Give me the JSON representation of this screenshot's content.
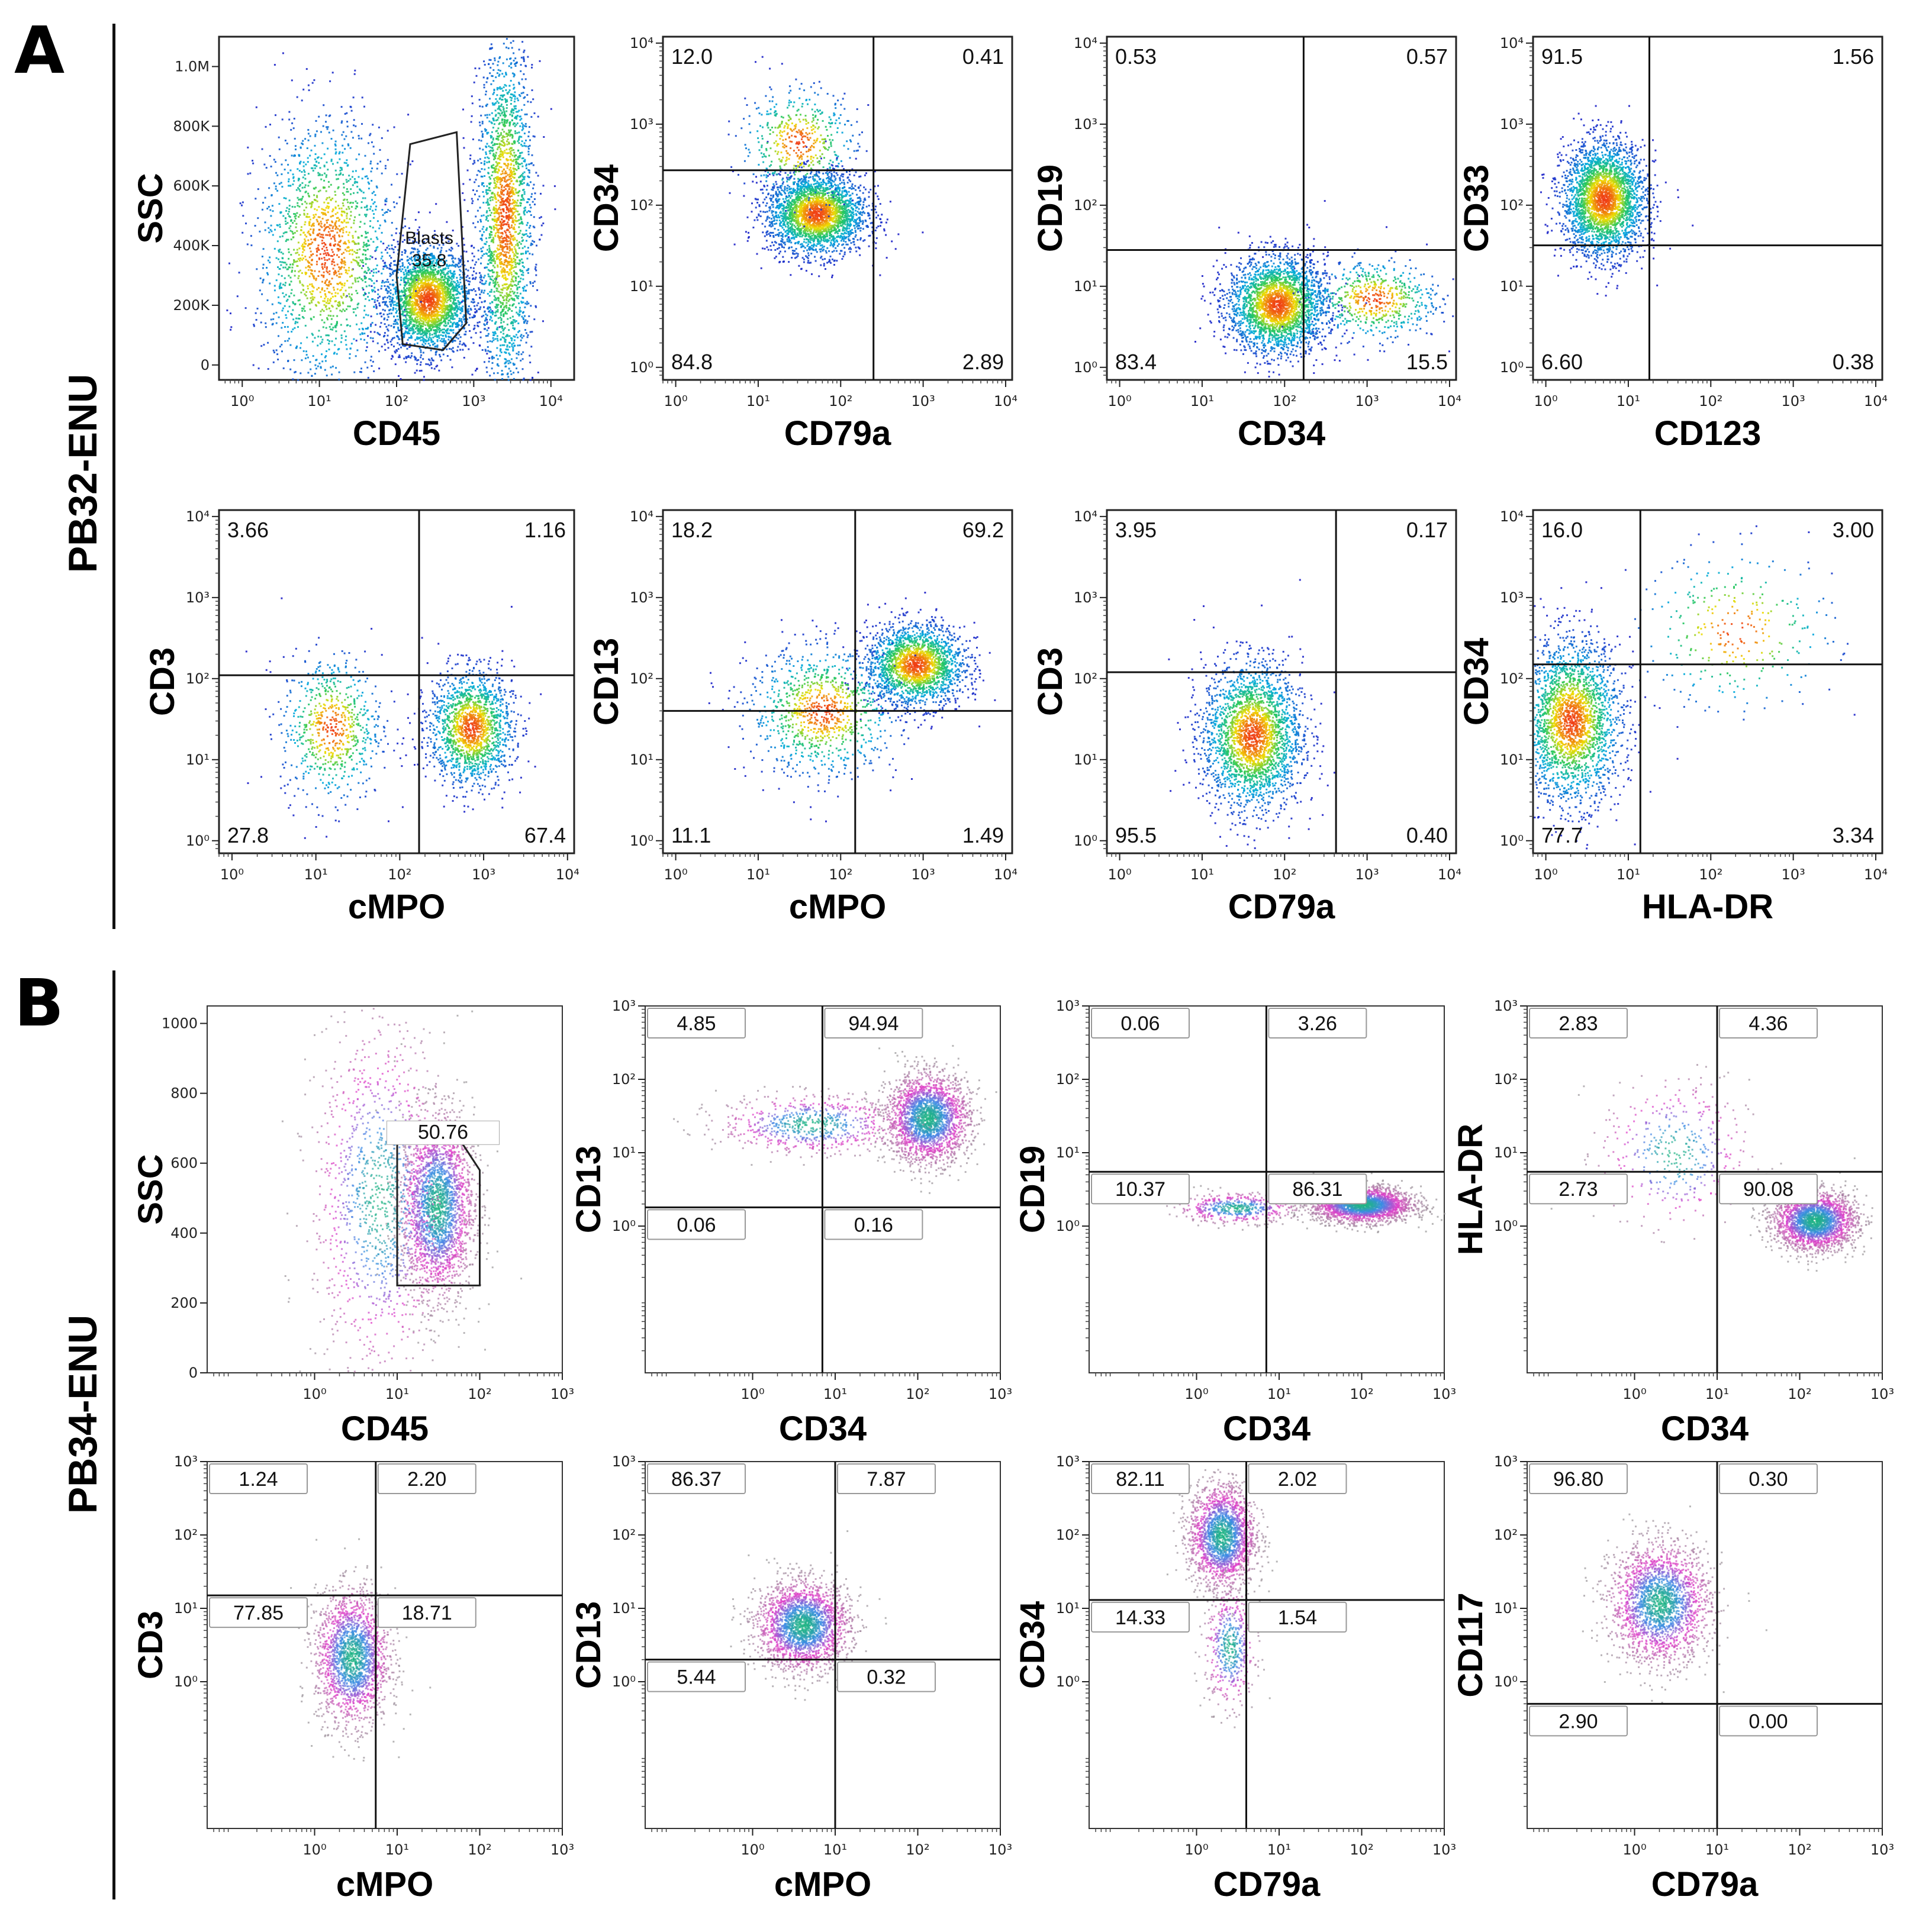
{
  "figure": {
    "panel_a": {
      "letter": "A",
      "sample": "PB32-ENU"
    },
    "panel_b": {
      "letter": "B",
      "sample": "PB34-ENU"
    }
  },
  "chart_data": [
    {
      "id": "a1",
      "type": "scatter",
      "xlabel": "CD45",
      "ylabel": "SSC",
      "x_scale": "log",
      "xlim": [
        0.5,
        20000
      ],
      "x_ticks": [
        1,
        10,
        100,
        1000,
        10000
      ],
      "x_tick_labels": [
        "10⁰",
        "10¹",
        "10²",
        "10³",
        "10⁴"
      ],
      "ylim": [
        -50000,
        1100000
      ],
      "y_ticks": [
        0,
        200000,
        400000,
        600000,
        800000,
        1000000
      ],
      "y_tick_labels": [
        "0",
        "200K",
        "400K",
        "600K",
        "800K",
        "1.0M"
      ],
      "gate": {
        "label": "Blasts",
        "value": "35.8",
        "points": [
          [
            100,
            300000
          ],
          [
            150,
            740000
          ],
          [
            600,
            780000
          ],
          [
            800,
            140000
          ],
          [
            400,
            50000
          ],
          [
            120,
            70000
          ]
        ]
      },
      "clusters": [
        {
          "cx": 250,
          "cy": 220000,
          "sx": 0.28,
          "sy": 90000,
          "n": 2600
        },
        {
          "cx": 12,
          "cy": 380000,
          "sx": 0.45,
          "sy": 220000,
          "n": 1700
        },
        {
          "cx": 2500,
          "cy": 500000,
          "sx": 0.18,
          "sy": 300000,
          "n": 2200
        }
      ],
      "style": "heat"
    },
    {
      "id": "a2",
      "type": "scatter",
      "xlabel": "CD79a",
      "ylabel": "CD34",
      "x_scale": "log",
      "y_scale": "log",
      "xlim": [
        0.7,
        12000
      ],
      "ylim": [
        0.7,
        12000
      ],
      "x_ticks": [
        1,
        10,
        100,
        1000,
        10000
      ],
      "x_tick_labels": [
        "10⁰",
        "10¹",
        "10²",
        "10³",
        "10⁴"
      ],
      "y_ticks": [
        1,
        10,
        100,
        1000,
        10000
      ],
      "y_tick_labels": [
        "10⁰",
        "10¹",
        "10²",
        "10³",
        "10⁴"
      ],
      "quad_x": 250,
      "quad_y": 270,
      "quadrants": [
        "12.0",
        "0.41",
        "84.8",
        "2.89"
      ],
      "clusters": [
        {
          "cx": 50,
          "cy": 80,
          "sx": 0.3,
          "sy": 0.25,
          "n": 2600
        },
        {
          "cx": 30,
          "cy": 600,
          "sx": 0.35,
          "sy": 0.35,
          "n": 500
        }
      ],
      "style": "heat"
    },
    {
      "id": "a3",
      "type": "scatter",
      "xlabel": "CD34",
      "ylabel": "CD19",
      "x_scale": "log",
      "y_scale": "log",
      "xlim": [
        0.7,
        12000
      ],
      "ylim": [
        0.7,
        12000
      ],
      "x_ticks": [
        1,
        10,
        100,
        1000,
        10000
      ],
      "x_tick_labels": [
        "10⁰",
        "10¹",
        "10²",
        "10³",
        "10⁴"
      ],
      "y_ticks": [
        1,
        10,
        100,
        1000,
        10000
      ],
      "y_tick_labels": [
        "10⁰",
        "10¹",
        "10²",
        "10³",
        "10⁴"
      ],
      "quad_x": 170,
      "quad_y": 28,
      "quadrants": [
        "0.53",
        "0.57",
        "83.4",
        "15.5"
      ],
      "clusters": [
        {
          "cx": 80,
          "cy": 6,
          "sx": 0.3,
          "sy": 0.3,
          "n": 2600
        },
        {
          "cx": 1200,
          "cy": 7,
          "sx": 0.4,
          "sy": 0.25,
          "n": 600
        }
      ],
      "style": "heat"
    },
    {
      "id": "a4",
      "type": "scatter",
      "xlabel": "CD123",
      "ylabel": "CD33",
      "x_scale": "log",
      "y_scale": "log",
      "xlim": [
        0.7,
        12000
      ],
      "ylim": [
        0.7,
        12000
      ],
      "x_ticks": [
        1,
        10,
        100,
        1000,
        10000
      ],
      "x_tick_labels": [
        "10⁰",
        "10¹",
        "10²",
        "10³",
        "10⁴"
      ],
      "y_ticks": [
        1,
        10,
        100,
        1000,
        10000
      ],
      "y_tick_labels": [
        "10⁰",
        "10¹",
        "10²",
        "10³",
        "10⁴"
      ],
      "quad_x": 18,
      "quad_y": 32,
      "quadrants": [
        "91.5",
        "1.56",
        "6.60",
        "0.38"
      ],
      "clusters": [
        {
          "cx": 5,
          "cy": 120,
          "sx": 0.25,
          "sy": 0.35,
          "n": 2800
        }
      ],
      "style": "heat"
    },
    {
      "id": "a5",
      "type": "scatter",
      "xlabel": "cMPO",
      "ylabel": "CD3",
      "x_scale": "log",
      "y_scale": "log",
      "xlim": [
        0.7,
        12000
      ],
      "ylim": [
        0.7,
        12000
      ],
      "x_ticks": [
        1,
        10,
        100,
        1000,
        10000
      ],
      "x_tick_labels": [
        "10⁰",
        "10¹",
        "10²",
        "10³",
        "10⁴"
      ],
      "y_ticks": [
        1,
        10,
        100,
        1000,
        10000
      ],
      "y_tick_labels": [
        "10⁰",
        "10¹",
        "10²",
        "10³",
        "10⁴"
      ],
      "quad_x": 170,
      "quad_y": 110,
      "quadrants": [
        "3.66",
        "1.16",
        "27.8",
        "67.4"
      ],
      "clusters": [
        {
          "cx": 700,
          "cy": 25,
          "sx": 0.25,
          "sy": 0.35,
          "n": 1600
        },
        {
          "cx": 15,
          "cy": 25,
          "sx": 0.3,
          "sy": 0.45,
          "n": 700
        }
      ],
      "style": "heat"
    },
    {
      "id": "a6",
      "type": "scatter",
      "xlabel": "cMPO",
      "ylabel": "CD13",
      "x_scale": "log",
      "y_scale": "log",
      "xlim": [
        0.7,
        12000
      ],
      "ylim": [
        0.7,
        12000
      ],
      "x_ticks": [
        1,
        10,
        100,
        1000,
        10000
      ],
      "x_tick_labels": [
        "10⁰",
        "10¹",
        "10²",
        "10³",
        "10⁴"
      ],
      "y_ticks": [
        1,
        10,
        100,
        1000,
        10000
      ],
      "y_tick_labels": [
        "10⁰",
        "10¹",
        "10²",
        "10³",
        "10⁴"
      ],
      "quad_x": 150,
      "quad_y": 40,
      "quadrants": [
        "18.2",
        "69.2",
        "11.1",
        "1.49"
      ],
      "clusters": [
        {
          "cx": 800,
          "cy": 150,
          "sx": 0.3,
          "sy": 0.25,
          "n": 2000
        },
        {
          "cx": 60,
          "cy": 40,
          "sx": 0.45,
          "sy": 0.4,
          "n": 1000
        }
      ],
      "style": "heat"
    },
    {
      "id": "a7",
      "type": "scatter",
      "xlabel": "CD79a",
      "ylabel": "CD3",
      "x_scale": "log",
      "y_scale": "log",
      "xlim": [
        0.7,
        12000
      ],
      "ylim": [
        0.7,
        12000
      ],
      "x_ticks": [
        1,
        10,
        100,
        1000,
        10000
      ],
      "x_tick_labels": [
        "10⁰",
        "10¹",
        "10²",
        "10³",
        "10⁴"
      ],
      "y_ticks": [
        1,
        10,
        100,
        1000,
        10000
      ],
      "y_tick_labels": [
        "10⁰",
        "10¹",
        "10²",
        "10³",
        "10⁴"
      ],
      "quad_x": 420,
      "quad_y": 120,
      "quadrants": [
        "3.95",
        "0.17",
        "95.5",
        "0.40"
      ],
      "clusters": [
        {
          "cx": 40,
          "cy": 20,
          "sx": 0.3,
          "sy": 0.45,
          "n": 2500
        }
      ],
      "style": "heat"
    },
    {
      "id": "a8",
      "type": "scatter",
      "xlabel": "HLA-DR",
      "ylabel": "CD34",
      "x_scale": "log",
      "y_scale": "log",
      "xlim": [
        0.7,
        12000
      ],
      "ylim": [
        0.7,
        12000
      ],
      "x_ticks": [
        1,
        10,
        100,
        1000,
        10000
      ],
      "x_tick_labels": [
        "10⁰",
        "10¹",
        "10²",
        "10³",
        "10⁴"
      ],
      "y_ticks": [
        1,
        10,
        100,
        1000,
        10000
      ],
      "y_tick_labels": [
        "10⁰",
        "10¹",
        "10²",
        "10³",
        "10⁴"
      ],
      "quad_x": 14,
      "quad_y": 150,
      "quadrants": [
        "16.0",
        "3.00",
        "77.7",
        "3.34"
      ],
      "clusters": [
        {
          "cx": 2,
          "cy": 30,
          "sx": 0.3,
          "sy": 0.5,
          "n": 2400
        },
        {
          "cx": 200,
          "cy": 400,
          "sx": 0.6,
          "sy": 0.5,
          "n": 300
        }
      ],
      "style": "heat"
    },
    {
      "id": "b1",
      "type": "scatter",
      "xlabel": "CD45",
      "ylabel": "SSC",
      "x_scale": "log",
      "xlim": [
        0.05,
        1000
      ],
      "x_ticks": [
        1,
        10,
        100,
        1000
      ],
      "x_tick_labels": [
        "10⁰",
        "10¹",
        "10²",
        "10³"
      ],
      "ylim": [
        0,
        1050
      ],
      "y_ticks": [
        0,
        200,
        400,
        600,
        800,
        1000
      ],
      "y_tick_labels": [
        "0",
        "200",
        "400",
        "600",
        "800",
        "1000"
      ],
      "gate": {
        "label": "",
        "value": "50.76",
        "points": [
          [
            10,
            660
          ],
          [
            60,
            660
          ],
          [
            100,
            580
          ],
          [
            100,
            250
          ],
          [
            10,
            250
          ]
        ]
      },
      "clusters": [
        {
          "cx": 30,
          "cy": 480,
          "sx": 0.22,
          "sy": 130,
          "n": 2400
        },
        {
          "cx": 6,
          "cy": 500,
          "sx": 0.4,
          "sy": 250,
          "n": 1200
        }
      ],
      "style": "pink"
    },
    {
      "id": "b2",
      "type": "scatter",
      "xlabel": "CD34",
      "ylabel": "CD13",
      "x_scale": "log",
      "y_scale": "log",
      "xlim": [
        0.05,
        1000
      ],
      "ylim": [
        0.01,
        1000
      ],
      "x_ticks": [
        1,
        10,
        100,
        1000
      ],
      "x_tick_labels": [
        "10⁰",
        "10¹",
        "10²",
        "10³"
      ],
      "y_ticks": [
        1,
        10,
        100,
        1000
      ],
      "y_tick_labels": [
        "10⁰",
        "10¹",
        "10²",
        "10³"
      ],
      "quad_x": 7,
      "quad_y": 1.8,
      "quadrants": [
        "4.85",
        "94.94",
        "0.06",
        "0.16"
      ],
      "clusters": [
        {
          "cx": 130,
          "cy": 30,
          "sx": 0.25,
          "sy": 0.3,
          "n": 2300
        },
        {
          "cx": 5,
          "cy": 25,
          "sx": 0.55,
          "sy": 0.2,
          "n": 700
        }
      ],
      "style": "pink"
    },
    {
      "id": "b3",
      "type": "scatter",
      "xlabel": "CD34",
      "ylabel": "CD19",
      "x_scale": "log",
      "y_scale": "log",
      "xlim": [
        0.05,
        1000
      ],
      "ylim": [
        0.01,
        1000
      ],
      "x_ticks": [
        1,
        10,
        100,
        1000
      ],
      "x_tick_labels": [
        "10⁰",
        "10¹",
        "10²",
        "10³"
      ],
      "y_ticks": [
        1,
        10,
        100,
        1000
      ],
      "y_tick_labels": [
        "10⁰",
        "10¹",
        "10²",
        "10³"
      ],
      "quad_x": 7,
      "quad_y": 5.5,
      "quadrants": [
        "0.06",
        "3.26",
        "10.37",
        "86.31"
      ],
      "clusters": [
        {
          "cx": 100,
          "cy": 2,
          "sx": 0.3,
          "sy": 0.12,
          "n": 2400
        },
        {
          "cx": 3,
          "cy": 1.8,
          "sx": 0.35,
          "sy": 0.1,
          "n": 500
        }
      ],
      "style": "pink"
    },
    {
      "id": "b4",
      "type": "scatter",
      "xlabel": "CD34",
      "ylabel": "HLA-DR",
      "x_scale": "log",
      "y_scale": "log",
      "xlim": [
        0.05,
        1000
      ],
      "ylim": [
        0.01,
        1000
      ],
      "x_ticks": [
        1,
        10,
        100,
        1000
      ],
      "x_tick_labels": [
        "10⁰",
        "10¹",
        "10²",
        "10³"
      ],
      "y_ticks": [
        1,
        10,
        100,
        1000
      ],
      "y_tick_labels": [
        "10⁰",
        "10¹",
        "10²",
        "10³"
      ],
      "quad_x": 10,
      "quad_y": 5.5,
      "quadrants": [
        "2.83",
        "4.36",
        "2.73",
        "90.08"
      ],
      "clusters": [
        {
          "cx": 150,
          "cy": 1.2,
          "sx": 0.25,
          "sy": 0.2,
          "n": 2300
        },
        {
          "cx": 3,
          "cy": 10,
          "sx": 0.45,
          "sy": 0.5,
          "n": 400
        }
      ],
      "style": "pink"
    },
    {
      "id": "b5",
      "type": "scatter",
      "xlabel": "cMPO",
      "ylabel": "CD3",
      "x_scale": "log",
      "y_scale": "log",
      "xlim": [
        0.05,
        1000
      ],
      "ylim": [
        0.01,
        1000
      ],
      "x_ticks": [
        1,
        10,
        100,
        1000
      ],
      "x_tick_labels": [
        "10⁰",
        "10¹",
        "10²",
        "10³"
      ],
      "y_ticks": [
        1,
        10,
        100,
        1000
      ],
      "y_tick_labels": [
        "10⁰",
        "10¹",
        "10²",
        "10³"
      ],
      "quad_x": 5.5,
      "quad_y": 15,
      "quadrants": [
        "1.24",
        "2.20",
        "77.85",
        "18.71"
      ],
      "clusters": [
        {
          "cx": 2.8,
          "cy": 2.2,
          "sx": 0.22,
          "sy": 0.45,
          "n": 2000
        }
      ],
      "style": "pink"
    },
    {
      "id": "b6",
      "type": "scatter",
      "xlabel": "cMPO",
      "ylabel": "CD13",
      "x_scale": "log",
      "y_scale": "log",
      "xlim": [
        0.05,
        1000
      ],
      "ylim": [
        0.01,
        1000
      ],
      "x_ticks": [
        1,
        10,
        100,
        1000
      ],
      "x_tick_labels": [
        "10⁰",
        "10¹",
        "10²",
        "10³"
      ],
      "y_ticks": [
        1,
        10,
        100,
        1000
      ],
      "y_tick_labels": [
        "10⁰",
        "10¹",
        "10²",
        "10³"
      ],
      "quad_x": 10,
      "quad_y": 2,
      "quadrants": [
        "86.37",
        "7.87",
        "5.44",
        "0.32"
      ],
      "clusters": [
        {
          "cx": 4,
          "cy": 6,
          "sx": 0.28,
          "sy": 0.3,
          "n": 2300
        }
      ],
      "style": "pink"
    },
    {
      "id": "b7",
      "type": "scatter",
      "xlabel": "CD79a",
      "ylabel": "CD34",
      "x_scale": "log",
      "y_scale": "log",
      "xlim": [
        0.05,
        1000
      ],
      "ylim": [
        0.01,
        1000
      ],
      "x_ticks": [
        1,
        10,
        100,
        1000
      ],
      "x_tick_labels": [
        "10⁰",
        "10¹",
        "10²",
        "10³"
      ],
      "y_ticks": [
        1,
        10,
        100,
        1000
      ],
      "y_tick_labels": [
        "10⁰",
        "10¹",
        "10²",
        "10³"
      ],
      "quad_x": 4,
      "quad_y": 13,
      "quadrants": [
        "82.11",
        "2.02",
        "14.33",
        "1.54"
      ],
      "clusters": [
        {
          "cx": 2,
          "cy": 100,
          "sx": 0.2,
          "sy": 0.35,
          "n": 2000
        },
        {
          "cx": 2.5,
          "cy": 3,
          "sx": 0.15,
          "sy": 0.4,
          "n": 500
        }
      ],
      "style": "pink"
    },
    {
      "id": "b8",
      "type": "scatter",
      "xlabel": "CD79a",
      "ylabel": "CD117",
      "x_scale": "log",
      "y_scale": "log",
      "xlim": [
        0.05,
        1000
      ],
      "ylim": [
        0.01,
        1000
      ],
      "x_ticks": [
        1,
        10,
        100,
        1000
      ],
      "x_tick_labels": [
        "10⁰",
        "10¹",
        "10²",
        "10³"
      ],
      "y_ticks": [
        1,
        10,
        100,
        1000
      ],
      "y_tick_labels": [
        "10⁰",
        "10¹",
        "10²",
        "10³"
      ],
      "quad_x": 10,
      "quad_y": 0.5,
      "quadrants": [
        "96.80",
        "0.30",
        "2.90",
        "0.00"
      ],
      "clusters": [
        {
          "cx": 2,
          "cy": 12,
          "sx": 0.3,
          "sy": 0.4,
          "n": 2200
        }
      ],
      "style": "pink"
    }
  ]
}
